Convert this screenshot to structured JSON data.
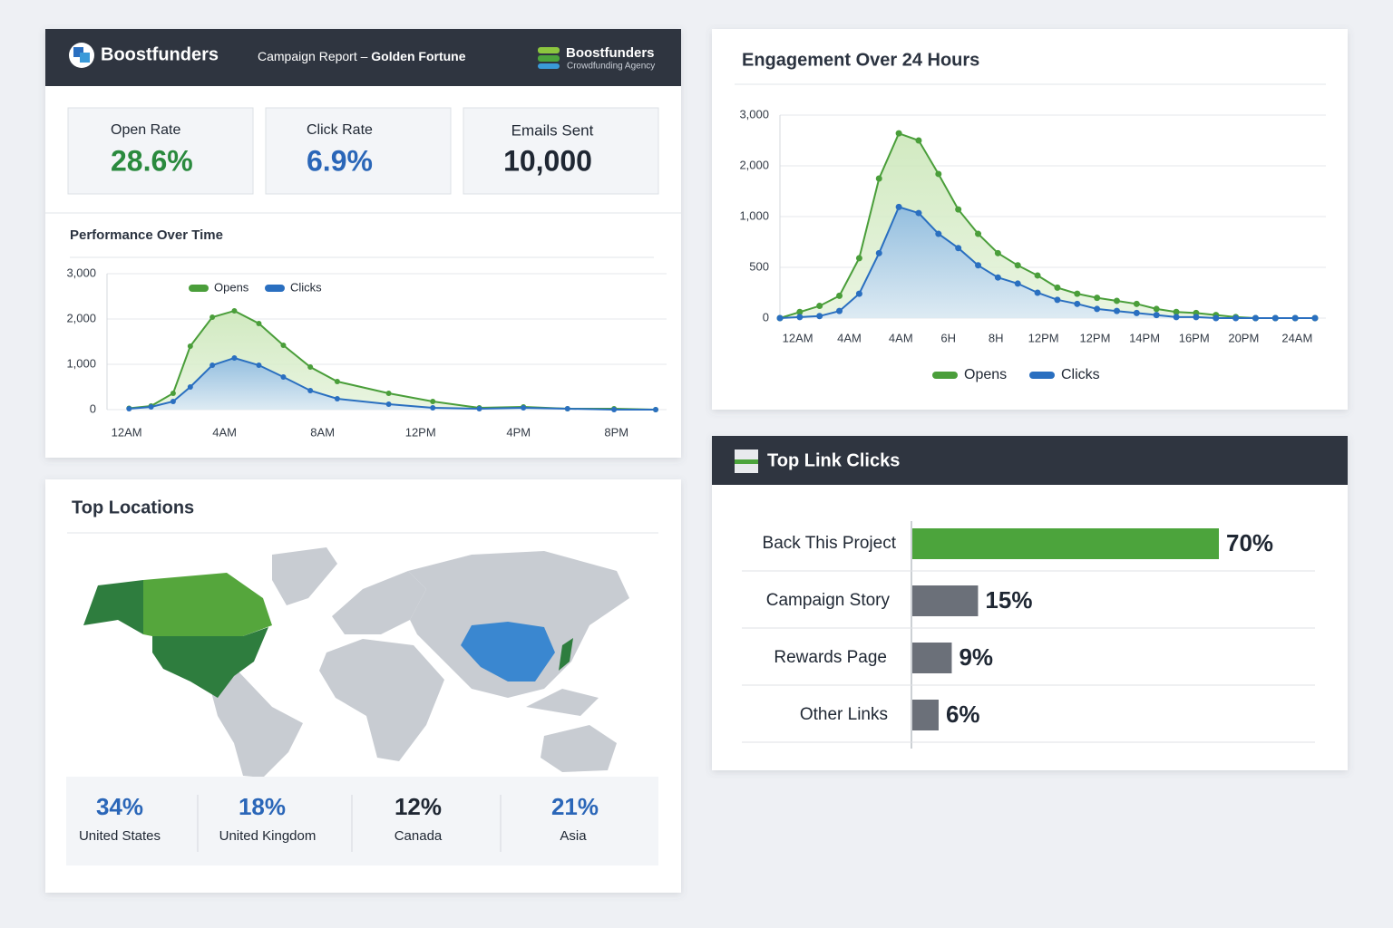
{
  "header": {
    "brand": "Boostfunders",
    "report_label": "Campaign Report –",
    "campaign": "Golden Fortune",
    "agency_name": "Boostfunders",
    "agency_tagline": "Crowdfunding Agency"
  },
  "kpis": [
    {
      "label": "Open Rate",
      "value": "28.6%"
    },
    {
      "label": "Click Rate",
      "value": "6.9%"
    },
    {
      "label": "Emails Sent",
      "value": "10,000"
    }
  ],
  "locations": {
    "title": "Top Locations",
    "items": [
      {
        "share": "34%",
        "name": "United States"
      },
      {
        "share": "18%",
        "name": "United Kingdom"
      },
      {
        "share": "12%",
        "name": "Canada"
      },
      {
        "share": "21%",
        "name": "Asia"
      }
    ]
  },
  "chart_data": [
    {
      "type": "line",
      "title": "Performance Over Time",
      "legend": "top",
      "grid": true,
      "x": [
        0.1,
        1,
        1.9,
        2.6,
        3.5,
        4.4,
        5.4,
        6.4,
        7.5,
        8.6,
        10.7,
        12.5,
        14.4,
        16.2,
        18,
        19.9,
        21.6
      ],
      "xlim": [
        -0.8,
        21.6
      ],
      "xticks": [
        {
          "value": 0,
          "label": "12AM"
        },
        {
          "value": 4,
          "label": "4AM"
        },
        {
          "value": 8,
          "label": "8AM"
        },
        {
          "value": 12,
          "label": "12PM"
        },
        {
          "value": 16,
          "label": "4PM"
        },
        {
          "value": 20,
          "label": "8PM"
        }
      ],
      "ylim": [
        0,
        3000
      ],
      "yticks": [
        0,
        {
          "value": 1000,
          "label": "1,000"
        },
        {
          "value": 2000,
          "label": "2,000"
        },
        {
          "value": 3000,
          "label": "3,000"
        }
      ],
      "series": [
        {
          "name": "Opens",
          "color": "#4a9e3a",
          "values": [
            30,
            80,
            360,
            1400,
            2040,
            2180,
            1900,
            1420,
            940,
            620,
            360,
            180,
            40,
            60,
            20,
            20,
            0
          ]
        },
        {
          "name": "Clicks",
          "color": "#2a6fc0",
          "values": [
            20,
            60,
            180,
            500,
            980,
            1140,
            980,
            720,
            420,
            240,
            120,
            40,
            20,
            40,
            20,
            0,
            0
          ]
        }
      ]
    },
    {
      "type": "line",
      "title": "Engagement Over 24 Hours",
      "legend": "bottom",
      "grid": true,
      "x": [
        0,
        1,
        2,
        3,
        4,
        5,
        6,
        7,
        8,
        9,
        10,
        11,
        12,
        13,
        14,
        15,
        16,
        17,
        18,
        19,
        20,
        21,
        22,
        23,
        24,
        25,
        26,
        27
      ],
      "xlim": [
        0,
        27
      ],
      "xticks": [
        {
          "value": 0.9,
          "label": "12AM"
        },
        {
          "value": 3.5,
          "label": "4AM"
        },
        {
          "value": 6.1,
          "label": "4AM"
        },
        {
          "value": 8.5,
          "label": "6H"
        },
        {
          "value": 10.9,
          "label": "8H"
        },
        {
          "value": 13.3,
          "label": "12PM"
        },
        {
          "value": 15.9,
          "label": "12PM"
        },
        {
          "value": 18.4,
          "label": "14PM"
        },
        {
          "value": 20.9,
          "label": "16PM"
        },
        {
          "value": 23.4,
          "label": "20PM"
        },
        {
          "value": 26.1,
          "label": "24AM"
        }
      ],
      "ylim": [
        0,
        3000
      ],
      "yticks": [
        0,
        500,
        {
          "value": 1000,
          "label": "1,000"
        },
        {
          "value": 2000,
          "label": "2,000"
        },
        {
          "value": 3000,
          "label": "3,000"
        }
      ],
      "series": [
        {
          "name": "Opens",
          "color": "#4a9e3a",
          "values": [
            0,
            60,
            120,
            220,
            590,
            1750,
            2640,
            2500,
            1840,
            1140,
            830,
            640,
            520,
            420,
            300,
            240,
            200,
            170,
            140,
            90,
            60,
            50,
            30,
            10,
            0,
            0,
            0,
            0
          ]
        },
        {
          "name": "Clicks",
          "color": "#2a6fc0",
          "values": [
            0,
            10,
            20,
            70,
            240,
            640,
            1190,
            1070,
            830,
            690,
            520,
            400,
            340,
            250,
            180,
            140,
            90,
            70,
            50,
            30,
            10,
            10,
            0,
            0,
            0,
            0,
            0,
            0
          ]
        }
      ]
    },
    {
      "type": "hbar",
      "title": "Top Link Clicks",
      "categories": [
        "Back This Project",
        "Campaign Story",
        "Rewards Page",
        "Other Links"
      ],
      "values": [
        70,
        15,
        9,
        6
      ],
      "value_labels": [
        "70%",
        "15%",
        "9%",
        "6%"
      ],
      "colors": [
        "#4ca43c",
        "#6b7079",
        "#6b7079",
        "#6b7079"
      ]
    }
  ]
}
